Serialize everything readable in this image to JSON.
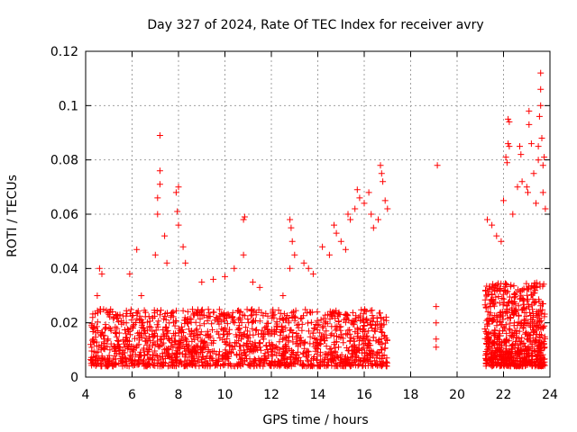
{
  "chart_data": {
    "type": "scatter",
    "title": "Day 327 of 2024, Rate Of TEC Index for receiver avry",
    "xlabel": "GPS time / hours",
    "ylabel": "ROTI / TECUs",
    "xlim": [
      4,
      24
    ],
    "ylim": [
      0,
      0.12
    ],
    "x_ticks": [
      4,
      6,
      8,
      10,
      12,
      14,
      16,
      18,
      20,
      22,
      24
    ],
    "x_tick_labels": [
      "4",
      "6",
      "8",
      "10",
      "12",
      "14",
      "16",
      "18",
      "20",
      "22",
      "24"
    ],
    "y_ticks": [
      0,
      0.02,
      0.04,
      0.06,
      0.08,
      0.1,
      0.12
    ],
    "y_tick_labels": [
      "0",
      "0.02",
      "0.04",
      "0.06",
      "0.08",
      "0.1",
      "0.12"
    ],
    "grid": true,
    "marker": "+",
    "color": "#ff0000",
    "series": [
      {
        "name": "ROTI",
        "dense_bands": [
          {
            "x_range": [
              4.2,
              17.0
            ],
            "y_range": [
              0.004,
              0.025
            ],
            "count": 1600
          },
          {
            "x_range": [
              21.2,
              23.8
            ],
            "y_range": [
              0.004,
              0.035
            ],
            "count": 700
          }
        ],
        "points": [
          [
            4.6,
            0.04
          ],
          [
            4.7,
            0.038
          ],
          [
            4.5,
            0.03
          ],
          [
            5.0,
            0.023
          ],
          [
            5.9,
            0.038
          ],
          [
            6.2,
            0.047
          ],
          [
            6.4,
            0.03
          ],
          [
            7.0,
            0.045
          ],
          [
            7.1,
            0.06
          ],
          [
            7.1,
            0.066
          ],
          [
            7.2,
            0.071
          ],
          [
            7.2,
            0.076
          ],
          [
            7.2,
            0.089
          ],
          [
            7.4,
            0.052
          ],
          [
            7.5,
            0.042
          ],
          [
            7.9,
            0.068
          ],
          [
            8.0,
            0.07
          ],
          [
            7.95,
            0.061
          ],
          [
            8.0,
            0.056
          ],
          [
            8.2,
            0.048
          ],
          [
            8.3,
            0.042
          ],
          [
            9.0,
            0.035
          ],
          [
            9.5,
            0.036
          ],
          [
            10.0,
            0.037
          ],
          [
            10.4,
            0.04
          ],
          [
            10.8,
            0.058
          ],
          [
            10.85,
            0.059
          ],
          [
            10.8,
            0.045
          ],
          [
            11.2,
            0.035
          ],
          [
            11.5,
            0.033
          ],
          [
            12.5,
            0.03
          ],
          [
            12.8,
            0.058
          ],
          [
            12.85,
            0.055
          ],
          [
            12.9,
            0.05
          ],
          [
            12.8,
            0.04
          ],
          [
            13.0,
            0.045
          ],
          [
            13.4,
            0.042
          ],
          [
            13.6,
            0.04
          ],
          [
            13.8,
            0.038
          ],
          [
            14.2,
            0.048
          ],
          [
            14.5,
            0.045
          ],
          [
            14.7,
            0.056
          ],
          [
            14.8,
            0.053
          ],
          [
            15.0,
            0.05
          ],
          [
            15.2,
            0.047
          ],
          [
            15.3,
            0.06
          ],
          [
            15.4,
            0.058
          ],
          [
            15.6,
            0.062
          ],
          [
            15.7,
            0.069
          ],
          [
            15.8,
            0.066
          ],
          [
            16.0,
            0.064
          ],
          [
            16.2,
            0.068
          ],
          [
            16.3,
            0.06
          ],
          [
            16.4,
            0.055
          ],
          [
            16.6,
            0.058
          ],
          [
            16.7,
            0.078
          ],
          [
            16.75,
            0.075
          ],
          [
            16.8,
            0.072
          ],
          [
            16.9,
            0.065
          ],
          [
            17.0,
            0.062
          ],
          [
            19.15,
            0.078
          ],
          [
            19.1,
            0.026
          ],
          [
            19.1,
            0.02
          ],
          [
            19.1,
            0.014
          ],
          [
            19.1,
            0.011
          ],
          [
            21.3,
            0.058
          ],
          [
            21.5,
            0.056
          ],
          [
            21.7,
            0.052
          ],
          [
            21.9,
            0.05
          ],
          [
            22.0,
            0.065
          ],
          [
            22.1,
            0.081
          ],
          [
            22.15,
            0.079
          ],
          [
            22.2,
            0.086
          ],
          [
            22.25,
            0.085
          ],
          [
            22.2,
            0.095
          ],
          [
            22.25,
            0.094
          ],
          [
            22.4,
            0.06
          ],
          [
            22.6,
            0.07
          ],
          [
            22.7,
            0.085
          ],
          [
            22.75,
            0.082
          ],
          [
            22.8,
            0.072
          ],
          [
            23.0,
            0.07
          ],
          [
            23.05,
            0.068
          ],
          [
            23.1,
            0.093
          ],
          [
            23.1,
            0.098
          ],
          [
            23.2,
            0.086
          ],
          [
            23.3,
            0.075
          ],
          [
            23.4,
            0.064
          ],
          [
            23.5,
            0.08
          ],
          [
            23.5,
            0.085
          ],
          [
            23.55,
            0.096
          ],
          [
            23.6,
            0.1
          ],
          [
            23.6,
            0.106
          ],
          [
            23.6,
            0.112
          ],
          [
            23.65,
            0.088
          ],
          [
            23.7,
            0.078
          ],
          [
            23.75,
            0.081
          ],
          [
            23.7,
            0.068
          ],
          [
            23.8,
            0.062
          ]
        ]
      }
    ]
  }
}
